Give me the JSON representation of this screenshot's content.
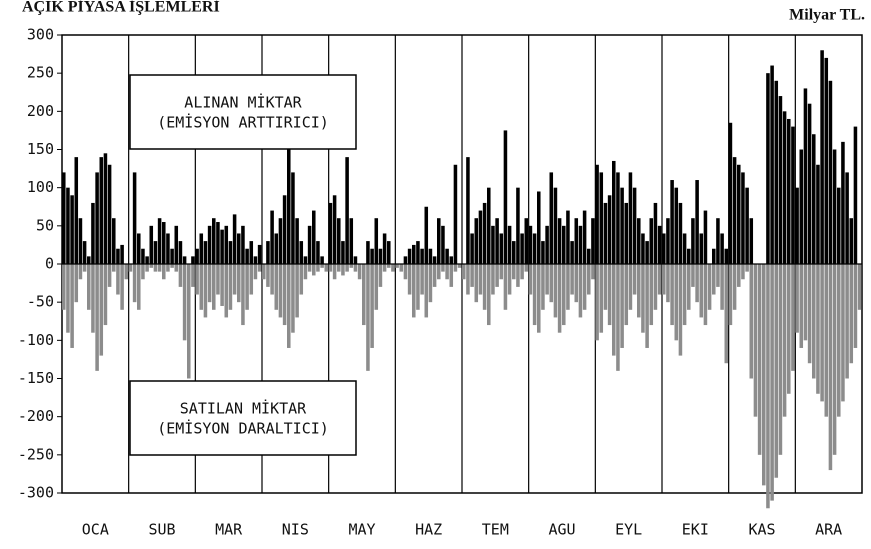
{
  "chart_data": {
    "type": "bar",
    "title": "AÇIK PİYASA İŞLEMLERİ",
    "unit": "Milyar TL.",
    "categories": [
      "OCA",
      "SUB",
      "MAR",
      "NIS",
      "MAY",
      "HAZ",
      "TEM",
      "AGU",
      "EYL",
      "EKI",
      "KAS",
      "ARA"
    ],
    "series": [
      {
        "name": "ALINAN MİKTAR",
        "subname": "(EMİSYON ARTTIRICI)",
        "color": "#000000",
        "values": [
          [
            120,
            100,
            90,
            140,
            60,
            30,
            10,
            80,
            120,
            140,
            145,
            130,
            60,
            20,
            25,
            0
          ],
          [
            0,
            120,
            40,
            20,
            10,
            50,
            30,
            60,
            55,
            40,
            20,
            50,
            30,
            10,
            0,
            10
          ],
          [
            20,
            40,
            30,
            50,
            60,
            55,
            45,
            50,
            30,
            65,
            40,
            50,
            20,
            30,
            10,
            25
          ],
          [
            0,
            30,
            70,
            40,
            60,
            90,
            170,
            120,
            60,
            30,
            10,
            50,
            70,
            30,
            10,
            0
          ],
          [
            80,
            90,
            60,
            30,
            140,
            60,
            10,
            0,
            0,
            30,
            20,
            60,
            20,
            40,
            30,
            0
          ],
          [
            0,
            0,
            10,
            20,
            25,
            30,
            20,
            75,
            20,
            10,
            60,
            50,
            20,
            10,
            130,
            0
          ],
          [
            0,
            140,
            40,
            60,
            70,
            80,
            100,
            50,
            60,
            40,
            175,
            50,
            30,
            100,
            40,
            60
          ],
          [
            50,
            40,
            95,
            30,
            50,
            120,
            100,
            60,
            50,
            70,
            30,
            60,
            50,
            70,
            20,
            60
          ],
          [
            130,
            120,
            80,
            90,
            135,
            120,
            100,
            80,
            120,
            100,
            60,
            40,
            30,
            60,
            80,
            50
          ],
          [
            40,
            60,
            110,
            100,
            80,
            40,
            20,
            60,
            110,
            40,
            70,
            0,
            20,
            60,
            40,
            20
          ],
          [
            185,
            140,
            130,
            120,
            100,
            60,
            0,
            0,
            0,
            250,
            260,
            240,
            220,
            200,
            190,
            180
          ],
          [
            100,
            150,
            230,
            210,
            170,
            130,
            280,
            270,
            240,
            150,
            100,
            160,
            120,
            60,
            180,
            0
          ]
        ]
      },
      {
        "name": "SATILAN MİKTAR",
        "subname": "(EMİSYON DARALTICI)",
        "color": "#8c8c8c",
        "values": [
          [
            -60,
            -90,
            -110,
            -50,
            -20,
            -10,
            -60,
            -90,
            -140,
            -120,
            -80,
            -30,
            -10,
            -40,
            -60,
            -20
          ],
          [
            -10,
            -50,
            -60,
            -20,
            -10,
            -5,
            -10,
            -10,
            -20,
            -10,
            -5,
            -10,
            -30,
            -100,
            -150,
            -30
          ],
          [
            -40,
            -60,
            -70,
            -50,
            -60,
            -40,
            -55,
            -70,
            -60,
            -40,
            -50,
            -80,
            -60,
            -40,
            -20,
            -10
          ],
          [
            -20,
            -30,
            -40,
            -60,
            -70,
            -80,
            -110,
            -90,
            -70,
            -40,
            -20,
            -10,
            -15,
            -10,
            -5,
            -10
          ],
          [
            -10,
            -20,
            -10,
            -15,
            -10,
            -5,
            -10,
            -20,
            -80,
            -140,
            -110,
            -60,
            -30,
            -10,
            -5,
            -10
          ],
          [
            -5,
            -10,
            -20,
            -40,
            -70,
            -60,
            -40,
            -70,
            -50,
            -30,
            -20,
            -10,
            -20,
            -30,
            -10,
            -5
          ],
          [
            -20,
            -40,
            -30,
            -50,
            -40,
            -60,
            -80,
            -40,
            -30,
            -20,
            -60,
            -40,
            -20,
            -30,
            -20,
            -10
          ],
          [
            -40,
            -80,
            -90,
            -60,
            -40,
            -50,
            -70,
            -90,
            -80,
            -60,
            -40,
            -50,
            -70,
            -60,
            -40,
            -20
          ],
          [
            -100,
            -90,
            -60,
            -80,
            -120,
            -140,
            -110,
            -80,
            -60,
            -40,
            -70,
            -90,
            -110,
            -80,
            -60,
            -40
          ],
          [
            -40,
            -50,
            -80,
            -100,
            -120,
            -80,
            -60,
            -30,
            -50,
            -70,
            -80,
            -60,
            -40,
            -30,
            -60,
            -130
          ],
          [
            -80,
            -60,
            -30,
            -20,
            -10,
            -150,
            -200,
            -250,
            -290,
            -320,
            -310,
            -280,
            -250,
            -200,
            -170,
            -140
          ],
          [
            -90,
            -110,
            -100,
            -130,
            -150,
            -170,
            -180,
            -200,
            -270,
            -250,
            -200,
            -180,
            -150,
            -130,
            -110,
            -60
          ]
        ]
      }
    ],
    "ylim": [
      -300,
      300
    ],
    "yticks": [
      -300,
      -250,
      -200,
      -150,
      -100,
      -50,
      0,
      50,
      100,
      150,
      200,
      250,
      300
    ],
    "grid": false
  }
}
